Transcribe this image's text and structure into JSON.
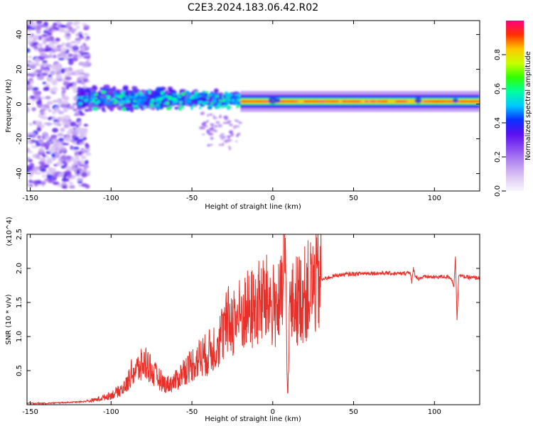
{
  "title": "C2E3.2024.183.06.42.R02",
  "colors": {
    "snr_line": "#e8302a",
    "axis": "#000000",
    "spec_bg": "#ffffff"
  },
  "chart_data": [
    {
      "type": "heatmap",
      "name": "spectrogram",
      "title": "C2E3.2024.183.06.42.R02",
      "xlabel": "Height of straight line (km)",
      "ylabel": "Frequency (Hz)",
      "xlim": [
        -152,
        128
      ],
      "ylim": [
        -50,
        48
      ],
      "xticks": [
        -150,
        -100,
        -50,
        0,
        50,
        100
      ],
      "yticks": [
        -40,
        -20,
        0,
        20,
        40
      ],
      "colorbar": {
        "label": "Normalized spectral amplitude",
        "range": [
          0,
          1
        ],
        "ticks": [
          0.0,
          0.2,
          0.4,
          0.6,
          0.8
        ],
        "colormap": [
          "#f8f6fc",
          "#dcc8f4",
          "#b58ef0",
          "#8a4cf0",
          "#5a10f0",
          "#0a30ff",
          "#00c8ff",
          "#00ffa0",
          "#30ff00",
          "#c8ff00",
          "#ffc800",
          "#ff3000",
          "#ff0080"
        ]
      },
      "regions": [
        {
          "x_range": [
            -152,
            -120
          ],
          "freq_center": 0,
          "freq_spread": 48,
          "amplitude": "low (noise, up to 0.3)"
        },
        {
          "x_range": [
            -120,
            -20
          ],
          "freq_center": 3,
          "freq_spread": 10,
          "amplitude": "0.2 - 0.6"
        },
        {
          "x_range": [
            -20,
            128
          ],
          "freq_center": 1.5,
          "freq_spread": 2,
          "amplitude": "0.7 - 1.0"
        }
      ]
    },
    {
      "type": "line",
      "name": "snr",
      "xlabel": "Height of straight line (km)",
      "ylabel": "SNR (10 * v/v)",
      "y_multiplier": "(x10^4)",
      "xlim": [
        -152,
        128
      ],
      "ylim": [
        0,
        2.5
      ],
      "xticks": [
        -150,
        -100,
        -50,
        0,
        50,
        100
      ],
      "yticks": [
        0.5,
        1.0,
        1.5,
        2.0,
        2.5
      ],
      "series": [
        {
          "name": "SNR",
          "x": [
            -152,
            -140,
            -130,
            -120,
            -115,
            -110,
            -105,
            -100,
            -95,
            -90,
            -88,
            -85,
            -82,
            -80,
            -78,
            -76,
            -74,
            -72,
            -70,
            -68,
            -65,
            -62,
            -60,
            -58,
            -55,
            -52,
            -50,
            -48,
            -45,
            -42,
            -40,
            -38,
            -35,
            -32,
            -30,
            -28,
            -25,
            -22,
            -20,
            -18,
            -15,
            -12,
            -10,
            -8,
            -5,
            -2,
            0,
            2,
            5,
            6,
            7,
            8,
            9,
            9.5,
            10,
            11,
            12,
            15,
            18,
            20,
            22,
            25,
            28,
            30,
            35,
            40,
            45,
            50,
            60,
            70,
            80,
            85,
            86,
            87,
            88,
            90,
            95,
            100,
            105,
            110,
            112,
            113,
            114,
            115,
            118,
            120,
            125,
            128
          ],
          "y": [
            0.02,
            0.02,
            0.03,
            0.04,
            0.05,
            0.07,
            0.1,
            0.14,
            0.2,
            0.3,
            0.45,
            0.5,
            0.55,
            0.6,
            0.62,
            0.55,
            0.45,
            0.42,
            0.38,
            0.32,
            0.3,
            0.32,
            0.35,
            0.4,
            0.5,
            0.55,
            0.6,
            0.62,
            0.7,
            0.72,
            0.75,
            0.8,
            0.9,
            1.0,
            1.1,
            1.2,
            1.25,
            1.28,
            1.3,
            1.35,
            1.38,
            1.4,
            1.45,
            1.5,
            1.55,
            1.5,
            1.45,
            1.45,
            1.5,
            1.55,
            2.5,
            1.6,
            0.3,
            0.12,
            1.3,
            1.4,
            1.45,
            1.55,
            1.6,
            1.62,
            1.68,
            1.75,
            1.8,
            1.83,
            1.87,
            1.9,
            1.91,
            1.92,
            1.93,
            1.93,
            1.92,
            1.95,
            1.78,
            2.0,
            1.9,
            1.85,
            1.88,
            1.87,
            1.88,
            1.87,
            1.75,
            2.15,
            1.25,
            1.9,
            1.88,
            1.87,
            1.86,
            1.86
          ]
        }
      ]
    }
  ]
}
